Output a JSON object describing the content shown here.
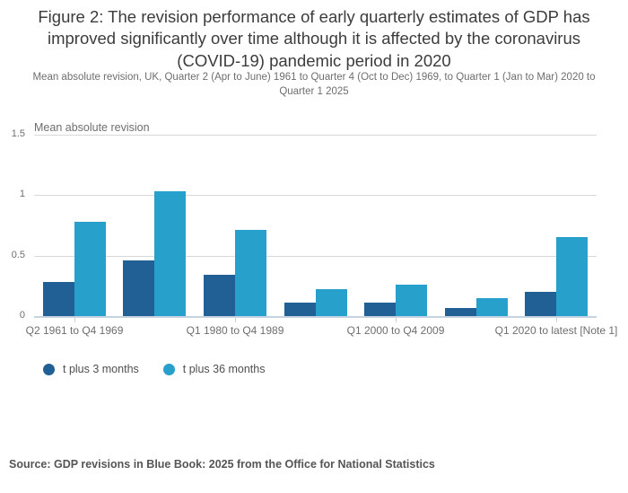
{
  "figure": {
    "source": "Source: GDP revisions in Blue Book: 2025 from the Office for National Statistics"
  },
  "chart_data": {
    "type": "bar",
    "title": "Figure 2: The revision performance of early quarterly estimates of GDP has improved significantly over time although it is affected by the coronavirus (COVID-19) pandemic period in 2020",
    "subtitle": "Mean absolute revision, UK, Quarter 2 (Apr to June) 1961 to Quarter 4 (Oct to Dec) 1969, to Quarter 1 (Jan to Mar) 2020 to Quarter 1 2025",
    "y_axis_label": "Mean absolute revision",
    "xlabel": "",
    "ylabel": "Mean absolute revision",
    "ylim": [
      0,
      1.5
    ],
    "yticks": [
      0,
      0.5,
      1,
      1.5
    ],
    "grid": true,
    "legend_position": "bottom-left",
    "categories": [
      "Q2 1961 to Q4 1969",
      "",
      "Q1 1980 to Q4 1989",
      "",
      "Q1 2000 to Q4 2009",
      "",
      "Q1 2020 to latest [Note 1]"
    ],
    "series": [
      {
        "name": "t plus 3 months",
        "color": "#206095",
        "values": [
          0.28,
          0.46,
          0.34,
          0.11,
          0.11,
          0.07,
          0.2
        ]
      },
      {
        "name": "t plus 36 months",
        "color": "#27a0cc",
        "values": [
          0.78,
          1.03,
          0.71,
          0.22,
          0.26,
          0.15,
          0.65
        ]
      }
    ]
  }
}
